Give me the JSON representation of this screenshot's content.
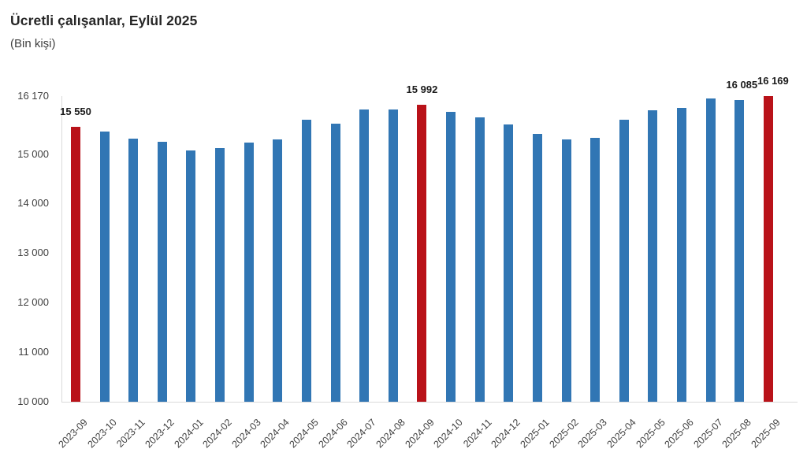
{
  "header": {
    "title": "Ücretli çalışanlar, Eylül 2025",
    "subtitle": "(Bin kişi)"
  },
  "chart_data": {
    "type": "bar",
    "title": "Ücretli çalışanlar, Eylül 2025",
    "subtitle": "(Bin kişi)",
    "unit": "Bin kişi",
    "categories": [
      "2023-09",
      "2023-10",
      "2023-11",
      "2023-12",
      "2024-01",
      "2024-02",
      "2024-03",
      "2024-04",
      "2024-05",
      "2024-06",
      "2024-07",
      "2024-08",
      "2024-09",
      "2024-10",
      "2024-11",
      "2024-12",
      "2025-01",
      "2025-02",
      "2025-03",
      "2025-04",
      "2025-05",
      "2025-06",
      "2025-07",
      "2025-08",
      "2025-09"
    ],
    "series": [
      {
        "name": "Ücretli çalışanlar",
        "values": [
          15550,
          15455,
          15310,
          15250,
          15070,
          15120,
          15230,
          15295,
          15700,
          15610,
          15905,
          15900,
          15992,
          15855,
          15740,
          15590,
          15405,
          15300,
          15335,
          15690,
          15890,
          15935,
          16130,
          16085,
          16169
        ]
      }
    ],
    "highlight_indices": [
      0,
      12,
      24
    ],
    "data_labels": [
      {
        "index": 0,
        "text": "15 550",
        "dx": 0
      },
      {
        "index": 12,
        "text": "15 992",
        "dx": 0
      },
      {
        "index": 23,
        "text": "16 085",
        "dx": 3
      },
      {
        "index": 24,
        "text": "16 169",
        "dx": 6
      }
    ],
    "ylim": [
      10000,
      16170
    ],
    "yticks": [
      {
        "value": 16170,
        "label": "16 170"
      },
      {
        "value": 15000,
        "label": "15 000"
      },
      {
        "value": 14000,
        "label": "14 000"
      },
      {
        "value": 13000,
        "label": "13 000"
      },
      {
        "value": 12000,
        "label": "12 000"
      },
      {
        "value": 11000,
        "label": "11 000"
      },
      {
        "value": 10000,
        "label": "10 000"
      }
    ],
    "grid": false,
    "legend_position": "none",
    "colors": {
      "bar": "#3176B4",
      "highlight": "#B91219",
      "axis_line": "#d9d9d9",
      "axis_text": "#404040",
      "title_text": "#262626",
      "label_text": "#1a1a1a"
    }
  }
}
